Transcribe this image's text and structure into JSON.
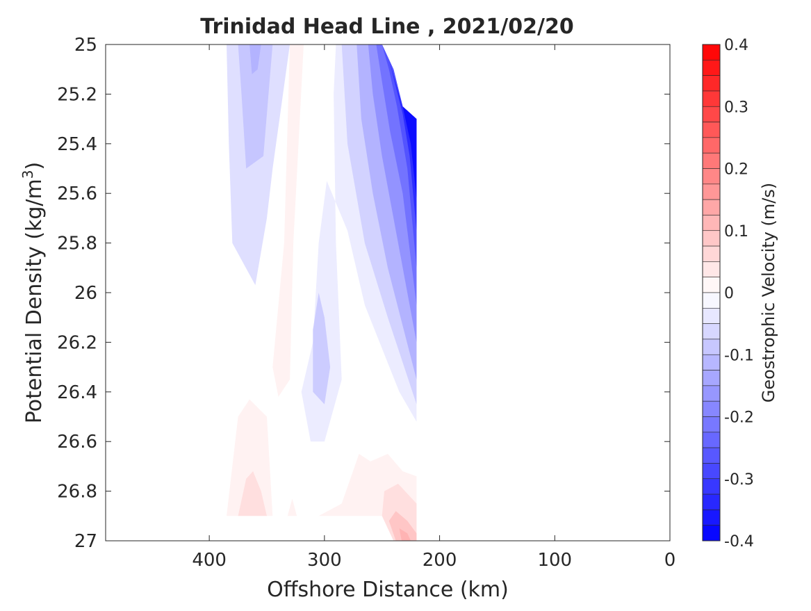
{
  "chart_data": {
    "type": "heatmap",
    "subtype": "filled-contour",
    "title": "Trinidad Head Line , 2021/02/20",
    "xlabel": "Offshore Distance (km)",
    "ylabel": "Potential Density (kg/m",
    "ylabel_superscript": "3",
    "ylabel_close": ")",
    "xlim": [
      490,
      0
    ],
    "ylim": [
      25,
      27
    ],
    "x_reversed": true,
    "y_reversed": true,
    "xticks": [
      400,
      300,
      200,
      100,
      0
    ],
    "yticks": [
      25,
      25.2,
      25.4,
      25.6,
      25.8,
      26,
      26.2,
      26.4,
      26.6,
      26.8,
      27
    ],
    "ytick_labels": [
      "25",
      "25.2",
      "25.4",
      "25.6",
      "25.8",
      "26",
      "26.2",
      "26.4",
      "26.6",
      "26.8",
      "27"
    ],
    "grid": false,
    "colorbar": {
      "label": "Geostrophic Velocity (m/s)",
      "min": -0.4,
      "max": 0.4,
      "levels": 32,
      "ticks": [
        0.4,
        0.3,
        0.2,
        0.1,
        0,
        -0.1,
        -0.2,
        -0.3,
        -0.4
      ],
      "tick_labels": [
        "0.4",
        "0.3",
        "0.2",
        "0.1",
        "0",
        "-0.1",
        "-0.2",
        "-0.3",
        "-0.4"
      ],
      "positive_color": "#ff0000",
      "negative_color": "#0000ff",
      "zero_color": "#ffffff"
    },
    "regions": [
      {
        "name": "west-negative-core",
        "value": -0.05,
        "points": [
          [
            385,
            25
          ],
          [
            330,
            25
          ],
          [
            345,
            25.5
          ],
          [
            350,
            25.7
          ],
          [
            360,
            25.97
          ],
          [
            380,
            25.8
          ],
          [
            383,
            25.4
          ]
        ]
      },
      {
        "name": "west-negative-inner",
        "value": -0.09,
        "points": [
          [
            375,
            25
          ],
          [
            345,
            25
          ],
          [
            353,
            25.45
          ],
          [
            368,
            25.5
          ],
          [
            372,
            25.2
          ]
        ]
      },
      {
        "name": "west-negative-deep",
        "value": -0.12,
        "points": [
          [
            365,
            25
          ],
          [
            355,
            25
          ],
          [
            358,
            25.1
          ],
          [
            363,
            25.12
          ]
        ]
      },
      {
        "name": "thin-positive-column",
        "value": 0.02,
        "points": [
          [
            345,
            25
          ],
          [
            330,
            25
          ],
          [
            335,
            25.8
          ],
          [
            345,
            26.3
          ],
          [
            340,
            26.42
          ],
          [
            330,
            26.35
          ],
          [
            327,
            25.8
          ],
          [
            318,
            25
          ]
        ]
      },
      {
        "name": "main-negative-envelope",
        "value": -0.03,
        "points": [
          [
            290,
            25
          ],
          [
            250,
            25
          ],
          [
            240,
            25.1
          ],
          [
            232,
            25.25
          ],
          [
            220,
            25.3
          ],
          [
            220,
            26.52
          ],
          [
            235,
            26.4
          ],
          [
            265,
            26.05
          ],
          [
            280,
            25.75
          ],
          [
            298,
            25.55
          ],
          [
            305,
            25.8
          ],
          [
            310,
            26.2
          ],
          [
            320,
            26.4
          ],
          [
            312,
            26.6
          ],
          [
            300,
            26.6
          ],
          [
            285,
            26.35
          ],
          [
            290,
            25.8
          ],
          [
            292,
            25.2
          ]
        ]
      },
      {
        "name": "mid-negative-tongue",
        "value": -0.08,
        "points": [
          [
            305,
            26.0
          ],
          [
            300,
            26.1
          ],
          [
            295,
            26.3
          ],
          [
            300,
            26.45
          ],
          [
            310,
            26.4
          ],
          [
            310,
            26.15
          ]
        ]
      },
      {
        "name": "main-negative-2",
        "value": -0.07,
        "points": [
          [
            285,
            25
          ],
          [
            250,
            25
          ],
          [
            240,
            25.1
          ],
          [
            232,
            25.25
          ],
          [
            220,
            25.3
          ],
          [
            220,
            26.45
          ],
          [
            245,
            26.1
          ],
          [
            265,
            25.8
          ],
          [
            280,
            25.4
          ]
        ]
      },
      {
        "name": "main-negative-3",
        "value": -0.12,
        "points": [
          [
            272,
            25
          ],
          [
            250,
            25
          ],
          [
            240,
            25.1
          ],
          [
            232,
            25.25
          ],
          [
            220,
            25.3
          ],
          [
            220,
            26.35
          ],
          [
            245,
            25.9
          ],
          [
            258,
            25.6
          ],
          [
            268,
            25.3
          ]
        ]
      },
      {
        "name": "main-negative-4",
        "value": -0.17,
        "points": [
          [
            262,
            25
          ],
          [
            250,
            25
          ],
          [
            240,
            25.1
          ],
          [
            232,
            25.25
          ],
          [
            220,
            25.3
          ],
          [
            220,
            26.2
          ],
          [
            238,
            25.75
          ],
          [
            250,
            25.45
          ],
          [
            258,
            25.2
          ]
        ]
      },
      {
        "name": "main-negative-5",
        "value": -0.22,
        "points": [
          [
            255,
            25
          ],
          [
            250,
            25
          ],
          [
            240,
            25.1
          ],
          [
            232,
            25.25
          ],
          [
            220,
            25.3
          ],
          [
            220,
            26.05
          ],
          [
            232,
            25.6
          ],
          [
            243,
            25.35
          ],
          [
            250,
            25.15
          ]
        ]
      },
      {
        "name": "main-negative-6",
        "value": -0.27,
        "points": [
          [
            250,
            25
          ],
          [
            240,
            25.1
          ],
          [
            232,
            25.25
          ],
          [
            220,
            25.3
          ],
          [
            220,
            25.9
          ],
          [
            228,
            25.5
          ],
          [
            237,
            25.25
          ],
          [
            244,
            25.1
          ]
        ]
      },
      {
        "name": "main-negative-7",
        "value": -0.33,
        "points": [
          [
            244,
            25.06
          ],
          [
            232,
            25.25
          ],
          [
            220,
            25.3
          ],
          [
            220,
            25.75
          ],
          [
            226,
            25.45
          ],
          [
            232,
            25.28
          ]
        ]
      },
      {
        "name": "main-negative-8",
        "value": -0.38,
        "points": [
          [
            232,
            25.25
          ],
          [
            220,
            25.3
          ],
          [
            220,
            25.62
          ],
          [
            225,
            25.4
          ]
        ]
      },
      {
        "name": "deep-west-positive",
        "value": 0.02,
        "points": [
          [
            385,
            26.9
          ],
          [
            375,
            26.5
          ],
          [
            365,
            26.43
          ],
          [
            350,
            26.5
          ],
          [
            345,
            26.9
          ]
        ]
      },
      {
        "name": "deep-west-positive-core",
        "value": 0.05,
        "points": [
          [
            375,
            26.9
          ],
          [
            368,
            26.75
          ],
          [
            362,
            26.72
          ],
          [
            355,
            26.8
          ],
          [
            350,
            26.9
          ]
        ]
      },
      {
        "name": "deep-mid-positive-sliver",
        "value": 0.02,
        "points": [
          [
            332,
            26.9
          ],
          [
            328,
            26.83
          ],
          [
            324,
            26.9
          ]
        ]
      },
      {
        "name": "deep-east-positive",
        "value": 0.02,
        "points": [
          [
            305,
            26.9
          ],
          [
            285,
            26.85
          ],
          [
            270,
            26.65
          ],
          [
            260,
            26.68
          ],
          [
            245,
            26.65
          ],
          [
            232,
            26.72
          ],
          [
            220,
            26.74
          ],
          [
            220,
            27
          ],
          [
            240,
            27
          ],
          [
            250,
            26.9
          ]
        ]
      },
      {
        "name": "deep-east-positive-2",
        "value": 0.05,
        "points": [
          [
            250,
            26.9
          ],
          [
            248,
            26.8
          ],
          [
            236,
            26.77
          ],
          [
            220,
            26.85
          ],
          [
            220,
            27
          ],
          [
            240,
            27
          ]
        ]
      },
      {
        "name": "deep-east-positive-3",
        "value": 0.09,
        "points": [
          [
            244,
            26.92
          ],
          [
            238,
            26.88
          ],
          [
            228,
            26.92
          ],
          [
            220,
            26.97
          ],
          [
            220,
            27
          ],
          [
            238,
            27
          ]
        ]
      },
      {
        "name": "deep-east-positive-4",
        "value": 0.12,
        "points": [
          [
            235,
            26.95
          ],
          [
            228,
            26.97
          ],
          [
            225,
            27
          ],
          [
            233,
            27
          ]
        ]
      }
    ]
  }
}
